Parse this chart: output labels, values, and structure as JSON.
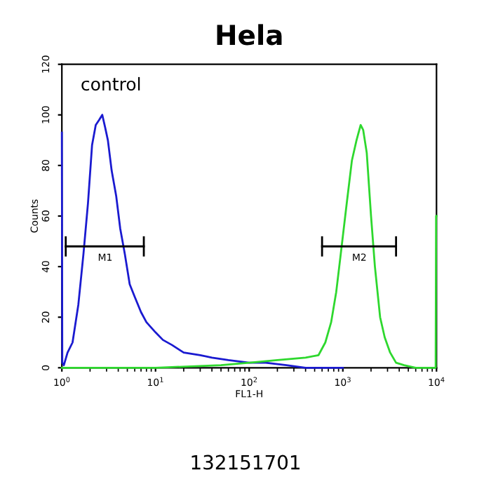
{
  "chart_data": {
    "type": "line",
    "title": "Hela",
    "xlabel": "FL1-H",
    "ylabel": "Counts",
    "log": "x",
    "xlim": [
      1,
      10000
    ],
    "ylim": [
      0,
      120
    ],
    "xticks": [
      {
        "value": 1,
        "label": "10$^{0}$"
      },
      {
        "value": 10,
        "label": "10$^{1}$"
      },
      {
        "value": 100,
        "label": "10$^{2}$"
      },
      {
        "value": 1000,
        "label": "10$^{3}$"
      },
      {
        "value": 10000,
        "label": "10$^{4}$"
      }
    ],
    "yticks": [
      0,
      20,
      40,
      60,
      80,
      100,
      120
    ],
    "grid": false,
    "legend": false,
    "marker": "none",
    "line_style": "solid",
    "series": [
      {
        "color": "#1a1ad0",
        "x": [
          1.0,
          1.01,
          1.05,
          1.15,
          1.3,
          1.5,
          1.7,
          1.9,
          2.1,
          2.3,
          2.5,
          2.7,
          2.9,
          3.1,
          3.4,
          3.8,
          4.2,
          4.7,
          5.3,
          6,
          7,
          8,
          10,
          12,
          15,
          20,
          30,
          40,
          60,
          100,
          150,
          250,
          400,
          1000
        ],
        "values": [
          93,
          2,
          1,
          6,
          10,
          25,
          45,
          65,
          88,
          96,
          98,
          100,
          95,
          90,
          78,
          68,
          55,
          45,
          33,
          28,
          22,
          18,
          14,
          11,
          9,
          6,
          5,
          4,
          3,
          2,
          2,
          1,
          0,
          0
        ]
      },
      {
        "color": "#2ed82e",
        "x": [
          1,
          10,
          50,
          100,
          200,
          400,
          550,
          650,
          750,
          850,
          950,
          1100,
          1250,
          1400,
          1550,
          1650,
          1800,
          2000,
          2200,
          2500,
          2800,
          3200,
          3700,
          4500,
          6000,
          9800,
          9900,
          10000
        ],
        "values": [
          0,
          0,
          1,
          2,
          3,
          4,
          5,
          10,
          18,
          30,
          45,
          65,
          82,
          90,
          96,
          94,
          85,
          60,
          40,
          20,
          12,
          6,
          2,
          1,
          0,
          0,
          60,
          60
        ]
      },
      {
        "color": "#000000",
        "x": [
          1.1,
          7.5
        ],
        "values": [
          48,
          48
        ],
        "errors": [
          4,
          4
        ]
      },
      {
        "color": "#000000",
        "x": [
          600,
          3700
        ],
        "values": [
          48,
          48
        ],
        "errors": [
          4,
          4
        ]
      }
    ],
    "annotations": [
      {
        "text": "M1",
        "x": 2.9,
        "y": 48
      },
      {
        "text": "M2",
        "x": 1500,
        "y": 48
      },
      "control",
      "132151701"
    ]
  }
}
